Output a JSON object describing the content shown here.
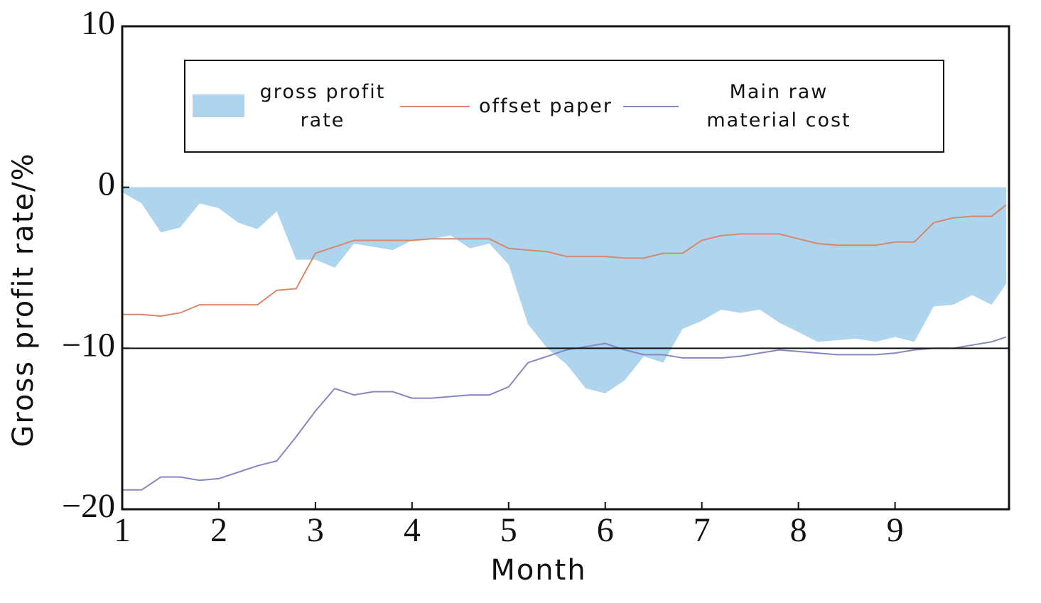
{
  "chart_data": {
    "type": "line",
    "xlabel": "Month",
    "ylabel": "Gross profit rate/%",
    "xlim": [
      1,
      10.18
    ],
    "xticks": [
      1,
      2,
      3,
      4,
      5,
      6,
      7,
      8,
      9
    ],
    "ylim": [
      -20,
      10
    ],
    "yticks": [
      10,
      0,
      {
        "value": -10,
        "label": "−10"
      },
      {
        "value": -20,
        "label": "−20"
      }
    ],
    "reference_line": -10,
    "x": [
      1,
      1.2,
      1.4,
      1.6,
      1.8,
      2.0,
      2.2,
      2.4,
      2.6,
      2.8,
      3.0,
      3.2,
      3.4,
      3.6,
      3.8,
      4.0,
      4.2,
      4.4,
      4.6,
      4.8,
      5.0,
      5.2,
      5.4,
      5.6,
      5.8,
      6.0,
      6.2,
      6.4,
      6.6,
      6.8,
      7.0,
      7.2,
      7.4,
      7.6,
      7.8,
      8.0,
      8.2,
      8.4,
      8.6,
      8.8,
      9.0,
      9.2,
      9.4,
      9.6,
      9.8,
      10.0,
      10.15
    ],
    "series": [
      {
        "name": "gross profit rate",
        "style": "area",
        "color": "#aed4ee",
        "values": [
          -0.3,
          -1,
          -2.8,
          -2.5,
          -1,
          -1.3,
          -2.2,
          -2.6,
          -1.5,
          -4.5,
          -4.5,
          -5,
          -3.5,
          -3.7,
          -3.9,
          -3.3,
          -3.2,
          -3,
          -3.8,
          -3.5,
          -4.8,
          -8.5,
          -10,
          -11,
          -12.5,
          -12.8,
          -12,
          -10.5,
          -10.9,
          -8.8,
          -8.3,
          -7.6,
          -7.8,
          -7.6,
          -8.4,
          -9,
          -9.6,
          -9.5,
          -9.4,
          -9.6,
          -9.3,
          -9.6,
          -7.4,
          -7.3,
          -6.7,
          -7.3,
          -6
        ]
      },
      {
        "name": "offset paper",
        "style": "line",
        "color": "#d9876a",
        "values": [
          -7.9,
          -7.9,
          -8.0,
          -7.8,
          -7.3,
          -7.3,
          -7.3,
          -7.3,
          -6.4,
          -6.3,
          -4.1,
          -3.7,
          -3.3,
          -3.3,
          -3.3,
          -3.3,
          -3.2,
          -3.2,
          -3.2,
          -3.2,
          -3.8,
          -3.9,
          -4.0,
          -4.3,
          -4.3,
          -4.3,
          -4.4,
          -4.4,
          -4.1,
          -4.1,
          -3.3,
          -3.0,
          -2.9,
          -2.9,
          -2.9,
          -3.2,
          -3.5,
          -3.6,
          -3.6,
          -3.6,
          -3.4,
          -3.4,
          -2.2,
          -1.9,
          -1.8,
          -1.8,
          -1.1
        ]
      },
      {
        "name": "Main raw material cost",
        "style": "line",
        "color": "#8686c0",
        "values": [
          -18.8,
          -18.8,
          -18.0,
          -18.0,
          -18.2,
          -18.1,
          -17.7,
          -17.3,
          -17.0,
          -15.5,
          -13.9,
          -12.5,
          -12.9,
          -12.7,
          -12.7,
          -13.1,
          -13.1,
          -13.0,
          -12.9,
          -12.9,
          -12.4,
          -10.9,
          -10.5,
          -10.1,
          -9.9,
          -9.7,
          -10.1,
          -10.4,
          -10.4,
          -10.6,
          -10.6,
          -10.6,
          -10.5,
          -10.3,
          -10.1,
          -10.2,
          -10.3,
          -10.4,
          -10.4,
          -10.4,
          -10.3,
          -10.1,
          -10.0,
          -10.0,
          -9.8,
          -9.6,
          -9.3
        ]
      }
    ]
  }
}
